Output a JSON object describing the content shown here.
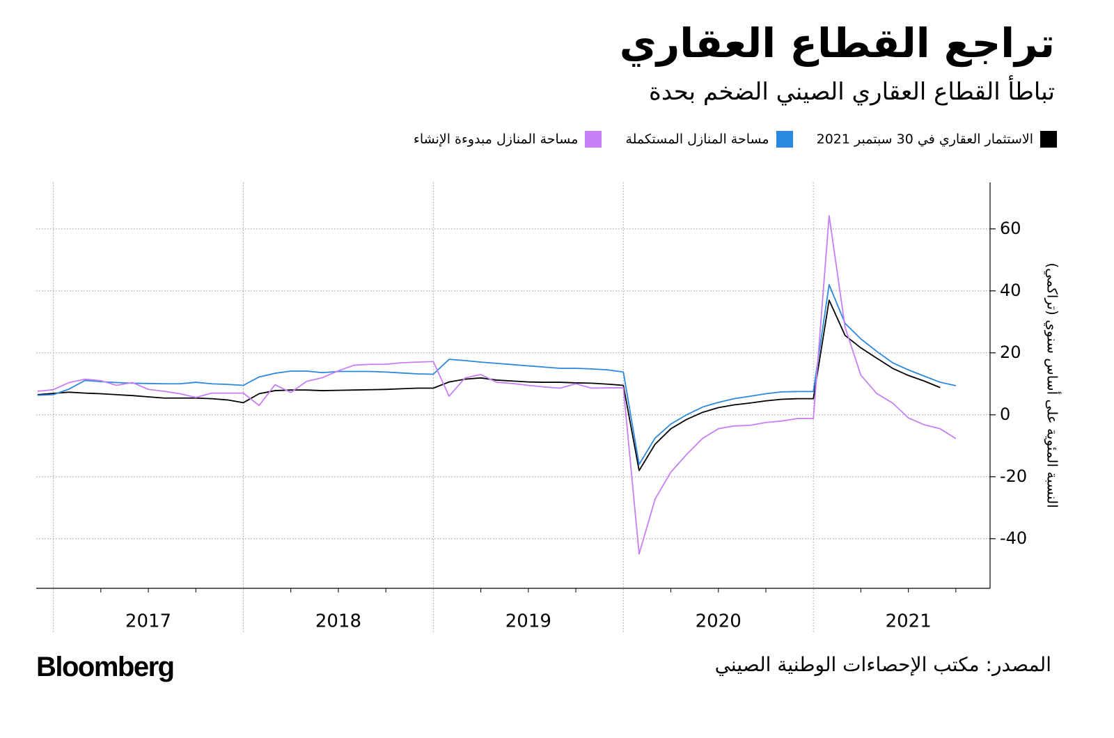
{
  "chart_data": {
    "type": "line",
    "title": "تراجع القطاع العقاري",
    "subtitle": "تباطأ القطاع العقاري الصيني الضخم بحدة",
    "y_label": "النسبة المئوية على أساس سنوي (تراكمي)",
    "source": "المصدر: مكتب الإحصاءات الوطنية الصيني",
    "logo": "Bloomberg",
    "xlim": [
      2016.91,
      2021.93
    ],
    "ylim": [
      -56,
      75
    ],
    "yticks": [
      -40,
      -20,
      0,
      20,
      40,
      60
    ],
    "xticks": [
      {
        "value": 2017.5,
        "label": "2017"
      },
      {
        "value": 2018.5,
        "label": "2018"
      },
      {
        "value": 2019.5,
        "label": "2019"
      },
      {
        "value": 2020.5,
        "label": "2020"
      },
      {
        "value": 2021.5,
        "label": "2021"
      }
    ],
    "xgrid": [
      2017,
      2018,
      2019,
      2020,
      2021
    ],
    "grid": true,
    "x": [
      2016.917,
      2017,
      2017.083,
      2017.167,
      2017.25,
      2017.333,
      2017.417,
      2017.5,
      2017.583,
      2017.667,
      2017.75,
      2017.833,
      2017.917,
      2018,
      2018.083,
      2018.167,
      2018.25,
      2018.333,
      2018.417,
      2018.5,
      2018.583,
      2018.667,
      2018.75,
      2018.833,
      2018.917,
      2019,
      2019.083,
      2019.167,
      2019.25,
      2019.333,
      2019.417,
      2019.5,
      2019.583,
      2019.667,
      2019.75,
      2019.833,
      2019.917,
      2020,
      2020.083,
      2020.167,
      2020.25,
      2020.333,
      2020.417,
      2020.5,
      2020.583,
      2020.667,
      2020.75,
      2020.833,
      2020.917,
      2021,
      2021.083,
      2021.167,
      2021.25,
      2021.333,
      2021.417,
      2021.5,
      2021.583,
      2021.667,
      2021.75
    ],
    "series": [
      {
        "name": "الاستثمار العقاري في 30 سبتمبر 2021",
        "color": "#000000",
        "values": [
          6.5,
          6.9,
          7.3,
          7.0,
          6.8,
          6.5,
          6.2,
          5.8,
          5.4,
          5.4,
          5.4,
          5.2,
          4.8,
          3.9,
          6.8,
          7.8,
          8.0,
          8.0,
          7.8,
          7.9,
          8.0,
          8.1,
          8.2,
          8.4,
          8.6,
          8.6,
          10.6,
          11.5,
          11.9,
          11.2,
          10.9,
          10.6,
          10.5,
          10.5,
          10.3,
          10.2,
          9.9,
          9.5,
          -18,
          -9.5,
          -4.5,
          -1.5,
          0.8,
          2.3,
          3.2,
          3.8,
          4.5,
          5.0,
          5.2,
          5.2,
          37,
          25.6,
          21.6,
          18.3,
          15,
          12.7,
          10.9,
          8.8,
          null
        ]
      },
      {
        "name": "مساحة المنازل المستكملة",
        "color": "#2a88e0",
        "values": [
          6.3,
          6.5,
          8.3,
          11.1,
          10.7,
          10.4,
          10.2,
          10.1,
          10.0,
          10.0,
          10.5,
          10.0,
          9.8,
          9.5,
          12.2,
          13.4,
          14.1,
          14.1,
          13.6,
          14.0,
          14.0,
          14.0,
          13.8,
          13.5,
          13.2,
          13.1,
          17.9,
          17.5,
          17.0,
          16.6,
          16.2,
          15.8,
          15.4,
          15.0,
          15.0,
          14.8,
          14.5,
          13.8,
          -16,
          -7.5,
          -3.0,
          0,
          2.5,
          4.0,
          5.2,
          6.0,
          6.8,
          7.4,
          7.5,
          7.5,
          42,
          29.5,
          24.5,
          20.5,
          16.8,
          14.5,
          12.5,
          10.5,
          9.4
        ]
      },
      {
        "name": "مساحة المنازل مبدوءة الإنشاء",
        "color": "#c77ef5",
        "values": [
          7.6,
          8.1,
          10.4,
          11.5,
          11.0,
          9.5,
          10.4,
          8.2,
          7.6,
          6.8,
          5.6,
          7.0,
          7.0,
          7.0,
          3.0,
          9.7,
          7.2,
          10.8,
          12.0,
          14.2,
          16.0,
          16.3,
          16.3,
          16.8,
          17.0,
          17.2,
          6.0,
          11.9,
          13.0,
          10.5,
          10.1,
          9.5,
          9.0,
          8.6,
          10.0,
          8.6,
          8.7,
          8.7,
          -44.9,
          -27.2,
          -18.5,
          -12.8,
          -7.6,
          -4.5,
          -3.6,
          -3.4,
          -2.5,
          -2.0,
          -1.2,
          -1.2,
          64.3,
          28.2,
          12.8,
          6.9,
          3.8,
          -1.0,
          -3.2,
          -4.5,
          -7.7
        ]
      }
    ]
  }
}
